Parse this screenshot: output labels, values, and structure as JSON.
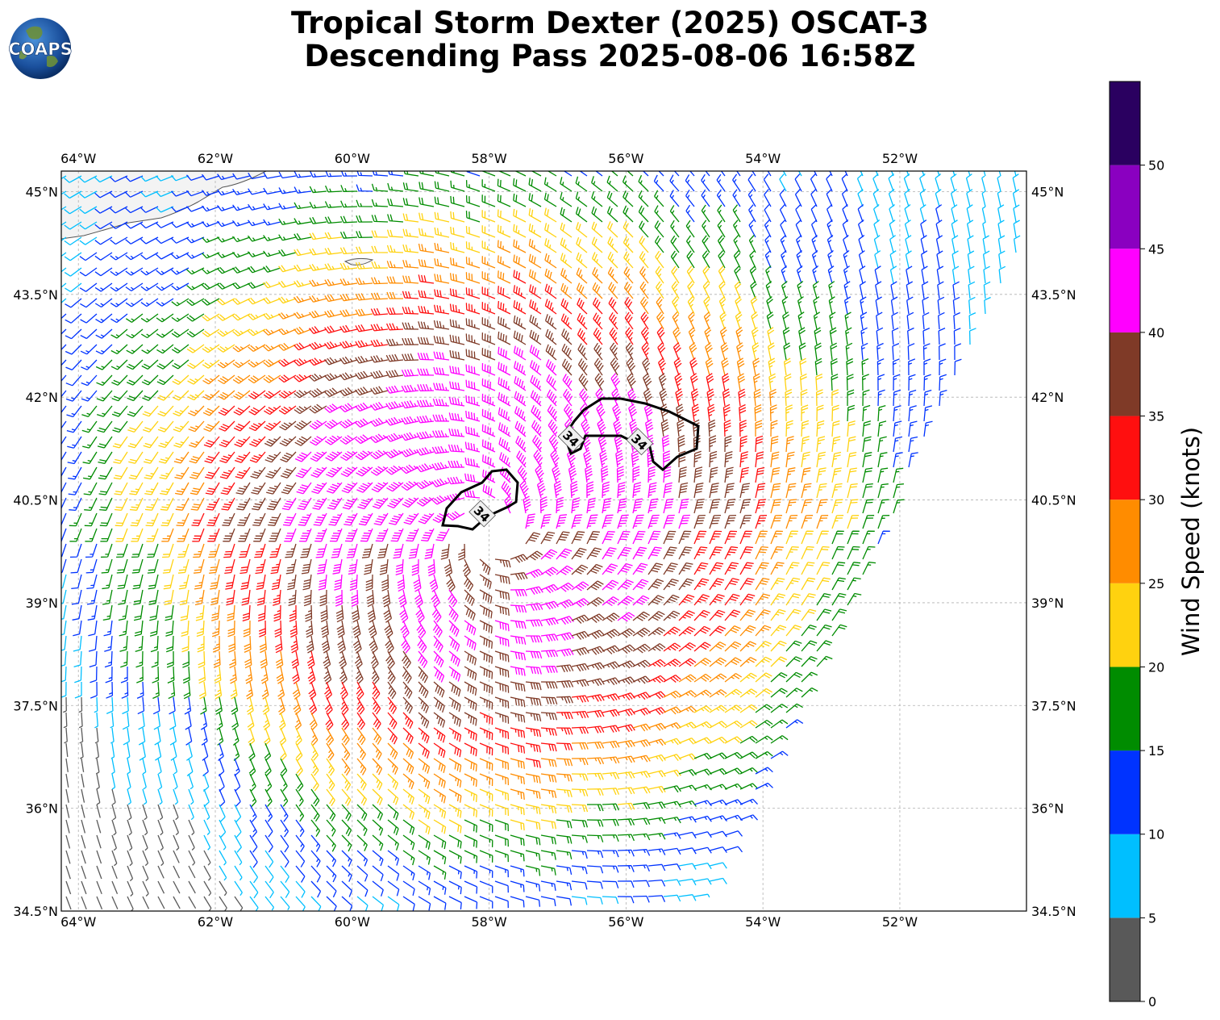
{
  "title": {
    "line1": "Tropical Storm Dexter (2025) OSCAT-3",
    "line2": "Descending Pass 2025-08-06 16:58Z"
  },
  "logo": {
    "text": "COAPS",
    "icon": "globe-icon"
  },
  "colorbar": {
    "label": "Wind Speed (knots)",
    "ticks": [
      "0",
      "5",
      "10",
      "15",
      "20",
      "25",
      "30",
      "35",
      "40",
      "45",
      "50"
    ],
    "bins": [
      {
        "min": 0,
        "max": 5,
        "color": "#595959"
      },
      {
        "min": 5,
        "max": 10,
        "color": "#00bfff"
      },
      {
        "min": 10,
        "max": 15,
        "color": "#0033ff"
      },
      {
        "min": 15,
        "max": 20,
        "color": "#008c00"
      },
      {
        "min": 20,
        "max": 25,
        "color": "#ffd20f"
      },
      {
        "min": 25,
        "max": 30,
        "color": "#ff8c00"
      },
      {
        "min": 30,
        "max": 35,
        "color": "#ff0f0f"
      },
      {
        "min": 35,
        "max": 40,
        "color": "#7f3a27"
      },
      {
        "min": 40,
        "max": 45,
        "color": "#ff00ff"
      },
      {
        "min": 45,
        "max": 50,
        "color": "#8a00c0"
      },
      {
        "min": 50,
        "max": 55,
        "color": "#2a0060"
      }
    ]
  },
  "map": {
    "lon_range": [
      -64.25,
      -50.15
    ],
    "lat_range": [
      34.5,
      45.3
    ],
    "lon_labels": [
      "64°W",
      "62°W",
      "60°W",
      "58°W",
      "56°W",
      "54°W",
      "52°W"
    ],
    "lon_values": [
      -64,
      -62,
      -60,
      -58,
      -56,
      -54,
      -52
    ],
    "lat_labels": [
      "34.5°N",
      "36°N",
      "37.5°N",
      "39°N",
      "40.5°N",
      "42°N",
      "43.5°N",
      "45°N"
    ],
    "lat_values": [
      34.5,
      36,
      37.5,
      39,
      40.5,
      42,
      43.5,
      45
    ],
    "gridlines": true
  },
  "storm": {
    "center_lon": -58.0,
    "center_lat": 40.0,
    "contour_label": "34",
    "contour_value_kt": 34,
    "label_positions": [
      {
        "lon": -56.8,
        "lat": 41.4
      },
      {
        "lon": -55.8,
        "lat": 41.35
      },
      {
        "lon": -58.1,
        "lat": 40.3
      }
    ]
  }
}
